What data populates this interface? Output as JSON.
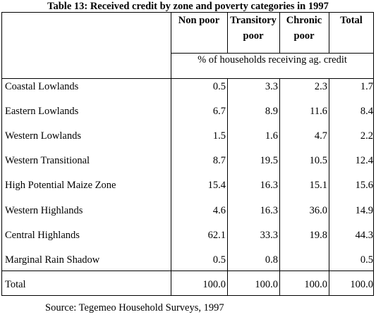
{
  "title": "Table 13: Received credit by zone and poverty categories in 1997",
  "columns": [
    {
      "line1": "Non poor",
      "line2": ""
    },
    {
      "line1": "Transitory",
      "line2": "poor"
    },
    {
      "line1": "Chronic",
      "line2": "poor"
    },
    {
      "line1": "Total",
      "line2": ""
    }
  ],
  "unit_label": "% of households receiving ag. credit",
  "rows": [
    {
      "label": "Coastal Lowlands",
      "values": [
        "0.5",
        "3.3",
        "2.3",
        "1.7"
      ]
    },
    {
      "label": "Eastern Lowlands",
      "values": [
        "6.7",
        "8.9",
        "11.6",
        "8.4"
      ]
    },
    {
      "label": "Western Lowlands",
      "values": [
        "1.5",
        "1.6",
        "4.7",
        "2.2"
      ]
    },
    {
      "label": "Western Transitional",
      "values": [
        "8.7",
        "19.5",
        "10.5",
        "12.4"
      ]
    },
    {
      "label": "High Potential Maize Zone",
      "values": [
        "15.4",
        "16.3",
        "15.1",
        "15.6"
      ]
    },
    {
      "label": "Western Highlands",
      "values": [
        "4.6",
        "16.3",
        "36.0",
        "14.9"
      ]
    },
    {
      "label": "Central Highlands",
      "values": [
        "62.1",
        "33.3",
        "19.8",
        "44.3"
      ]
    },
    {
      "label": "Marginal Rain Shadow",
      "values": [
        "0.5",
        "0.8",
        "",
        "0.5"
      ]
    },
    {
      "label": "Total",
      "values": [
        "100.0",
        "100.0",
        "100.0",
        "100.0"
      ]
    }
  ],
  "source": "Source: Tegemeo Household Surveys, 1997"
}
